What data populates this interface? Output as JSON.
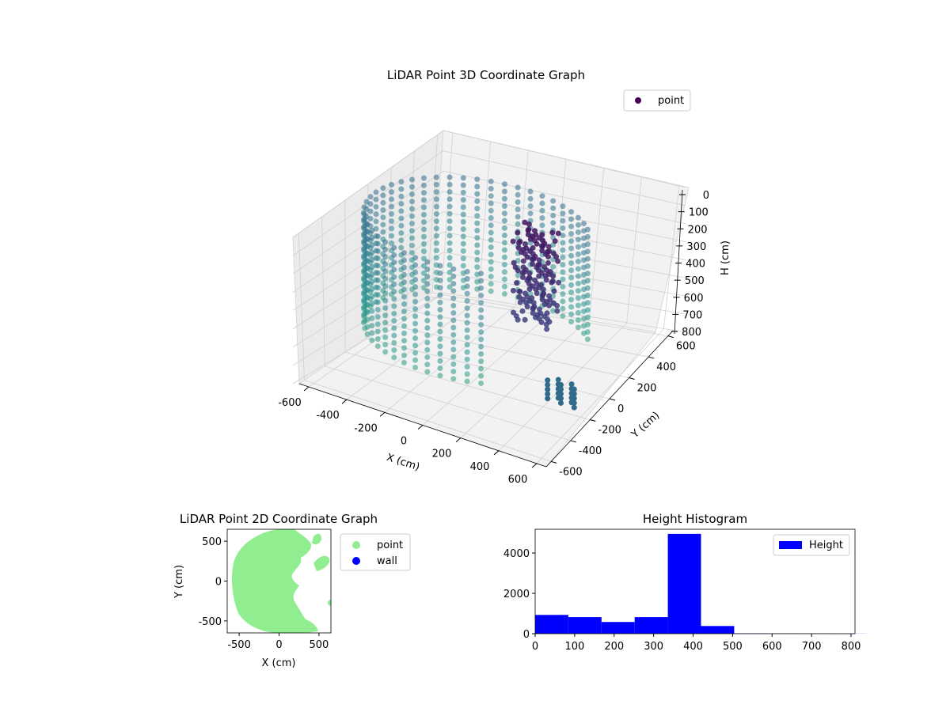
{
  "figure": {
    "background": "#ffffff"
  },
  "chart_data": [
    {
      "type": "scatter3d",
      "title": "LiDAR Point 3D Coordinate Graph",
      "xlabel": "X (cm)",
      "ylabel": "Y (cm)",
      "zlabel": "H (cm)",
      "xlim": [
        -650,
        650
      ],
      "ylim": [
        -650,
        650
      ],
      "zlim": [
        800,
        0
      ],
      "x_ticks": [
        "-600",
        "-400",
        "-200",
        "0",
        "200",
        "400",
        "600"
      ],
      "y_ticks": [
        "-600",
        "-400",
        "-200",
        "0",
        "200",
        "400",
        "600"
      ],
      "z_ticks": [
        "0",
        "100",
        "200",
        "300",
        "400",
        "500",
        "600",
        "700",
        "800"
      ],
      "z_inverted": true,
      "colormap": "viridis",
      "grid": true,
      "legend": {
        "position": "top-right",
        "entries": [
          {
            "label": "point",
            "color": "#440154"
          }
        ]
      },
      "structures": [
        {
          "kind": "ring",
          "radius_cm": 560,
          "h_top_cm": 0,
          "h_bottom_cm": 600
        },
        {
          "kind": "cluster",
          "x_cm": 150,
          "y_cm": 200,
          "h_top_cm": 0,
          "h_bottom_cm": 500
        },
        {
          "kind": "cluster",
          "x_cm": 420,
          "y_cm": -80,
          "h_top_cm": 650,
          "h_bottom_cm": 750
        }
      ]
    },
    {
      "type": "scatter",
      "title": "LiDAR Point 2D Coordinate Graph",
      "xlabel": "X (cm)",
      "ylabel": "Y (cm)",
      "xlim": [
        -650,
        650
      ],
      "ylim": [
        -650,
        650
      ],
      "x_ticks": [
        "-500",
        "0",
        "500"
      ],
      "y_ticks": [
        "-500",
        "0",
        "500"
      ],
      "legend": {
        "position": "outside-right",
        "entries": [
          {
            "label": "point",
            "color": "#90ee90"
          },
          {
            "label": "wall",
            "color": "#0000ff"
          }
        ]
      },
      "series": [
        {
          "name": "point",
          "color": "#90ee90",
          "shape": "half-disc",
          "radius_cm": 600,
          "x_range": [
            -600,
            250
          ]
        },
        {
          "name": "wall",
          "color": "#0000ff",
          "values": []
        }
      ]
    },
    {
      "type": "bar",
      "title": "Height Histogram",
      "xlabel": "",
      "ylabel": "",
      "xlim": [
        0,
        810
      ],
      "ylim": [
        0,
        5180
      ],
      "x_ticks": [
        "0",
        "100",
        "200",
        "300",
        "400",
        "500",
        "600",
        "700",
        "800"
      ],
      "y_ticks": [
        "0",
        "2000",
        "4000"
      ],
      "color": "#0000ff",
      "legend": {
        "position": "top-right",
        "entries": [
          {
            "label": "Height",
            "color": "#0000ff"
          }
        ]
      },
      "bin_edges": [
        0,
        84,
        168,
        252,
        336,
        420,
        504,
        588,
        672,
        756,
        840
      ],
      "values": [
        930,
        820,
        580,
        820,
        4950,
        380,
        15,
        10,
        8,
        5
      ]
    }
  ]
}
